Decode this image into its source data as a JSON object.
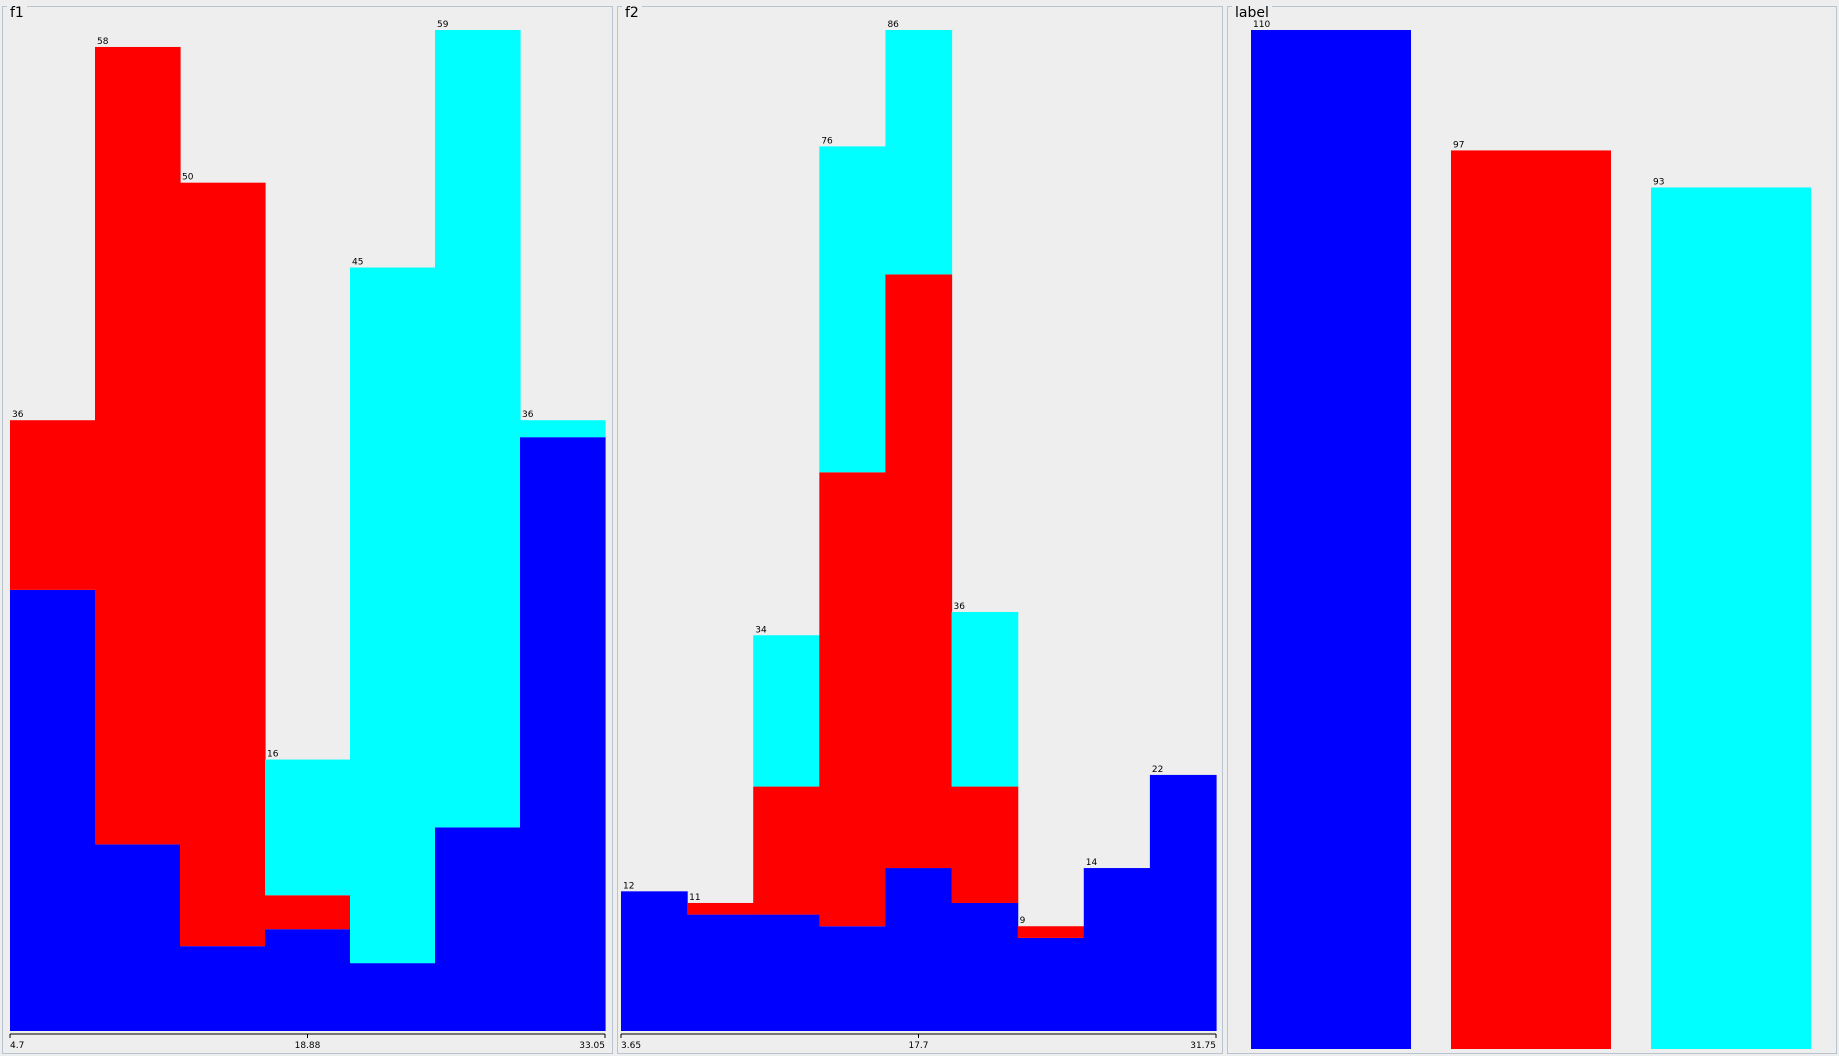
{
  "panels": {
    "f1": {
      "title": "f1"
    },
    "f2": {
      "title": "f2"
    },
    "label": {
      "title": "label"
    }
  },
  "colors": {
    "blue": "#0000ff",
    "red": "#ff0000",
    "cyan": "#00ffff"
  },
  "chart_data": [
    {
      "type": "bar",
      "stacked": true,
      "title": "f1",
      "axis_ticks": [
        "4.7",
        "18.88",
        "33.05"
      ],
      "xlim": [
        4.7,
        33.05
      ],
      "ylim": [
        0,
        59
      ],
      "totals_labels": [
        "36",
        "58",
        "50",
        "16",
        "45",
        "59",
        "36"
      ],
      "totals": [
        36,
        58,
        50,
        16,
        45,
        59,
        36
      ],
      "series": [
        {
          "color": "#0000ff",
          "values": [
            26,
            11,
            5,
            6,
            4,
            12,
            35
          ]
        },
        {
          "color": "#ff0000",
          "values": [
            10,
            47,
            45,
            2,
            0,
            0,
            0
          ]
        },
        {
          "color": "#00ffff",
          "values": [
            0,
            0,
            0,
            8,
            41,
            47,
            1
          ]
        }
      ]
    },
    {
      "type": "bar",
      "stacked": true,
      "title": "f2",
      "axis_ticks": [
        "3.65",
        "17.7",
        "31.75"
      ],
      "xlim": [
        3.65,
        31.75
      ],
      "ylim": [
        0,
        86
      ],
      "totals_labels": [
        "12",
        "11",
        "34",
        "76",
        "86",
        "36",
        "9",
        "14",
        "22"
      ],
      "totals": [
        12,
        11,
        34,
        76,
        86,
        36,
        9,
        14,
        22
      ],
      "series": [
        {
          "color": "#0000ff",
          "values": [
            12,
            10,
            10,
            9,
            14,
            11,
            8,
            14,
            22
          ]
        },
        {
          "color": "#ff0000",
          "values": [
            0,
            1,
            11,
            39,
            51,
            10,
            1,
            0,
            0
          ]
        },
        {
          "color": "#00ffff",
          "values": [
            0,
            0,
            13,
            28,
            21,
            15,
            0,
            0,
            0
          ]
        }
      ]
    },
    {
      "type": "bar",
      "title": "label",
      "categories": [
        "",
        "",
        ""
      ],
      "values_labels": [
        "110",
        "97",
        "93"
      ],
      "values": [
        110,
        97,
        93
      ],
      "colors": [
        "#0000ff",
        "#ff0000",
        "#00ffff"
      ],
      "ylim": [
        0,
        110
      ]
    }
  ]
}
